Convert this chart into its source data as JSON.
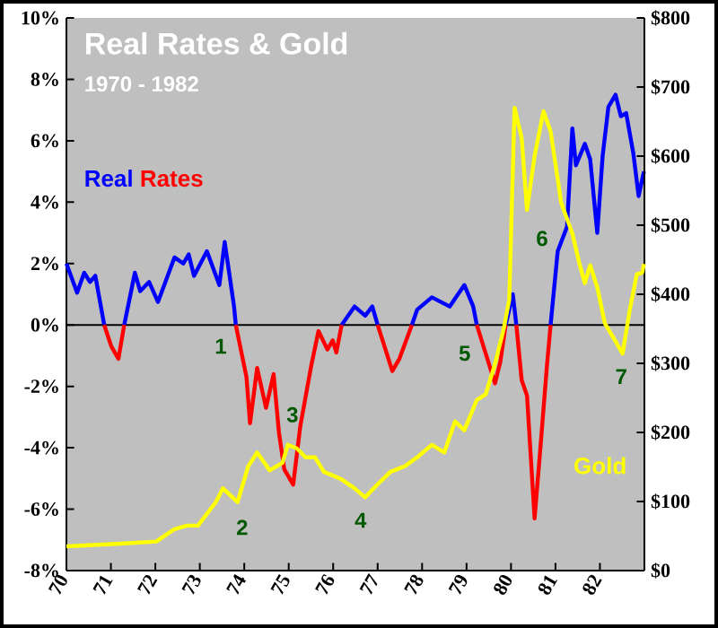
{
  "chart_data": {
    "type": "line",
    "title": "Real Rates & Gold",
    "subtitle": "1970 - 1982",
    "xlim": [
      1970,
      1983
    ],
    "ylim": [
      -8,
      10
    ],
    "y2lim": [
      0,
      800
    ],
    "xticks": [
      {
        "value": 1970,
        "label": "70"
      },
      {
        "value": 1971,
        "label": "71"
      },
      {
        "value": 1972,
        "label": "72"
      },
      {
        "value": 1973,
        "label": "73"
      },
      {
        "value": 1974,
        "label": "74"
      },
      {
        "value": 1975,
        "label": "75"
      },
      {
        "value": 1976,
        "label": "76"
      },
      {
        "value": 1977,
        "label": "77"
      },
      {
        "value": 1978,
        "label": "78"
      },
      {
        "value": 1979,
        "label": "79"
      },
      {
        "value": 1980,
        "label": "80"
      },
      {
        "value": 1981,
        "label": "81"
      },
      {
        "value": 1982,
        "label": "82"
      }
    ],
    "yticks": [
      {
        "value": -8,
        "label": "-8%"
      },
      {
        "value": -6,
        "label": "-6%"
      },
      {
        "value": -4,
        "label": "-4%"
      },
      {
        "value": -2,
        "label": "-2%"
      },
      {
        "value": 0,
        "label": "0%"
      },
      {
        "value": 2,
        "label": "2%"
      },
      {
        "value": 4,
        "label": "4%"
      },
      {
        "value": 6,
        "label": "6%"
      },
      {
        "value": 8,
        "label": "8%"
      },
      {
        "value": 10,
        "label": "10%"
      }
    ],
    "y2ticks": [
      {
        "value": 0,
        "label": "$0"
      },
      {
        "value": 100,
        "label": "$100"
      },
      {
        "value": 200,
        "label": "$200"
      },
      {
        "value": 300,
        "label": "$300"
      },
      {
        "value": 400,
        "label": "$400"
      },
      {
        "value": 500,
        "label": "$500"
      },
      {
        "value": 600,
        "label": "$600"
      },
      {
        "value": 700,
        "label": "$700"
      },
      {
        "value": 800,
        "label": "$800"
      }
    ],
    "ref_lines": [
      {
        "axis": "y",
        "value": 0,
        "color": "#000000"
      }
    ],
    "annotations": [
      "1",
      "2",
      "3",
      "4",
      "5",
      "6",
      "7"
    ],
    "series": [
      {
        "name": "Real",
        "color": "#0000ff",
        "x": [
          1970,
          1970.24,
          1970.4,
          1970.53,
          1970.65,
          1970.85,
          1971.01,
          1971.17,
          1971.3,
          1971.54,
          1971.66,
          1971.86,
          1972.06,
          1972.43,
          1972.63,
          1972.75,
          1972.87,
          1973.16,
          1973.44,
          1973.56,
          1973.77,
          1973.81,
          1974.05,
          1974.13,
          1974.29,
          1974.49,
          1974.66,
          1974.78,
          1974.9,
          1975.1,
          1975.26,
          1975.51,
          1975.67,
          1975.87,
          1975.99,
          1976.07,
          1976.19,
          1976.48,
          1976.72,
          1976.88,
          1977.0,
          1977.33,
          1977.49,
          1977.77,
          1977.89,
          1978.22,
          1978.62,
          1978.95,
          1979.15,
          1979.23,
          1979.51,
          1979.64,
          1979.76,
          1979.88,
          1980.04,
          1980.12,
          1980.24,
          1980.36,
          1980.53,
          1980.65,
          1980.81,
          1980.89,
          1981.05,
          1981.26,
          1981.38,
          1981.46,
          1981.66,
          1981.78,
          1981.94,
          1982.06,
          1982.19,
          1982.35,
          1982.47,
          1982.59,
          1982.75,
          1982.87,
          1982.99
        ],
        "values": [
          2.0,
          1.05,
          1.7,
          1.4,
          1.6,
          0,
          null,
          null,
          0,
          1.7,
          1.1,
          1.4,
          0.75,
          2.2,
          2.0,
          2.3,
          1.6,
          2.4,
          1.3,
          2.7,
          0.6,
          0,
          null,
          null,
          null,
          null,
          null,
          null,
          null,
          null,
          null,
          null,
          null,
          null,
          null,
          null,
          0,
          0.6,
          0.3,
          0.6,
          0,
          null,
          null,
          0,
          0.5,
          0.9,
          0.6,
          1.3,
          0.6,
          0,
          null,
          null,
          null,
          0,
          1.0,
          0,
          null,
          null,
          null,
          null,
          null,
          0,
          2.4,
          3.2,
          6.4,
          5.2,
          5.9,
          5.4,
          3.0,
          5.5,
          7.1,
          7.5,
          6.8,
          6.9,
          5.6,
          4.2,
          5.0
        ]
      },
      {
        "name": "Rates",
        "color": "#ff0000",
        "x": [
          1970.85,
          1971.01,
          1971.17,
          1971.3,
          1971.54,
          1971.66,
          1971.86,
          1972.06,
          1972.43,
          1972.63,
          1972.75,
          1972.87,
          1973.16,
          1973.44,
          1973.56,
          1973.77,
          1973.81,
          1974.05,
          1974.13,
          1974.29,
          1974.49,
          1974.66,
          1974.78,
          1974.9,
          1975.1,
          1975.26,
          1975.51,
          1975.67,
          1975.87,
          1975.99,
          1976.07,
          1976.19,
          1976.48,
          1976.72,
          1976.88,
          1977.0,
          1977.33,
          1977.49,
          1977.77,
          1977.89,
          1978.22,
          1978.62,
          1978.95,
          1979.15,
          1979.23,
          1979.51,
          1979.64,
          1979.76,
          1979.88,
          1980.04,
          1980.12,
          1980.24,
          1980.36,
          1980.53,
          1980.65,
          1980.81,
          1980.89
        ],
        "values": [
          0,
          -0.7,
          -1.1,
          0,
          null,
          null,
          null,
          null,
          null,
          null,
          null,
          null,
          null,
          null,
          null,
          null,
          0,
          -1.7,
          -3.2,
          -1.4,
          -2.7,
          -1.6,
          -3.5,
          -4.7,
          -5.2,
          -3.3,
          -1.3,
          -0.2,
          -0.8,
          -0.5,
          -0.9,
          0,
          null,
          null,
          null,
          0,
          -1.5,
          -1.1,
          0,
          null,
          null,
          null,
          null,
          null,
          0,
          -1.3,
          -1.9,
          -1.2,
          0,
          null,
          0,
          -1.8,
          -2.3,
          -6.3,
          -4.2,
          -1.3,
          0
        ]
      },
      {
        "name": "Gold",
        "color": "#ffff00",
        "axis": "y2",
        "x": [
          1970,
          1971.21,
          1972.02,
          1972.43,
          1972.71,
          1972.96,
          1973.36,
          1973.52,
          1973.85,
          1974.09,
          1974.29,
          1974.57,
          1974.86,
          1974.98,
          1975.18,
          1975.38,
          1975.59,
          1975.79,
          1976.19,
          1976.48,
          1976.72,
          1977.0,
          1977.29,
          1977.61,
          1977.89,
          1978.22,
          1978.5,
          1978.74,
          1978.95,
          1979.23,
          1979.43,
          1979.64,
          1979.84,
          1979.96,
          1980.08,
          1980.24,
          1980.36,
          1980.53,
          1980.73,
          1980.89,
          1981.13,
          1981.38,
          1981.54,
          1981.66,
          1981.78,
          1981.94,
          1982.11,
          1982.35,
          1982.51,
          1982.67,
          1982.83,
          1982.95,
          1982.99
        ],
        "values": [
          35,
          39,
          42,
          60,
          65,
          65,
          99,
          119,
          99,
          151,
          171,
          145,
          156,
          182,
          177,
          164,
          164,
          143,
          132,
          119,
          106,
          125,
          143,
          151,
          164,
          182,
          171,
          216,
          203,
          247,
          255,
          299,
          351,
          392,
          670,
          626,
          522,
          600,
          665,
          636,
          532,
          488,
          444,
          416,
          442,
          410,
          358,
          332,
          314,
          377,
          429,
          431,
          444
        ]
      }
    ]
  }
}
